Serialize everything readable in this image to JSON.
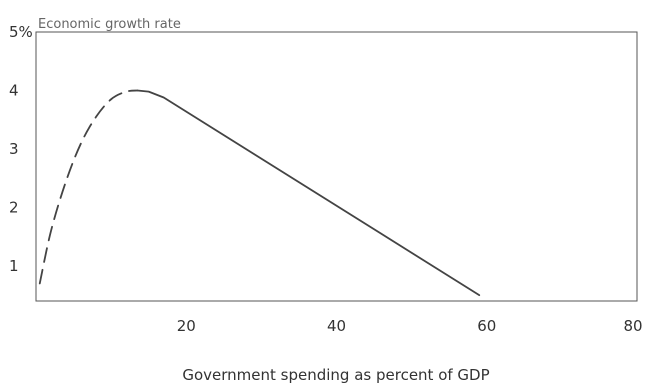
{
  "chart_data": {
    "type": "line",
    "title": "",
    "ylabel": "Economic growth rate",
    "xlabel": "Government spending as percent of GDP",
    "xlim": [
      0,
      80
    ],
    "ylim": [
      0.4,
      5
    ],
    "x_ticks": [
      20,
      40,
      60,
      80
    ],
    "x_tick_labels": [
      "20",
      "40",
      "60",
      "80"
    ],
    "y_ticks": [
      1,
      2,
      3,
      4,
      5
    ],
    "y_tick_labels": [
      "1",
      "2",
      "3",
      "4",
      "5%"
    ],
    "grid": false,
    "series": [
      {
        "style": "dashed",
        "color": "#444444",
        "points": [
          [
            0.5,
            0.7
          ],
          [
            2,
            1.6
          ],
          [
            4,
            2.45
          ],
          [
            6,
            3.1
          ],
          [
            8,
            3.55
          ],
          [
            10,
            3.85
          ],
          [
            12,
            3.98
          ],
          [
            13.5,
            4.0
          ]
        ]
      },
      {
        "style": "solid",
        "color": "#444444",
        "points": [
          [
            13.5,
            4.0
          ],
          [
            15,
            3.98
          ],
          [
            17,
            3.88
          ],
          [
            59,
            0.5
          ]
        ]
      }
    ]
  }
}
